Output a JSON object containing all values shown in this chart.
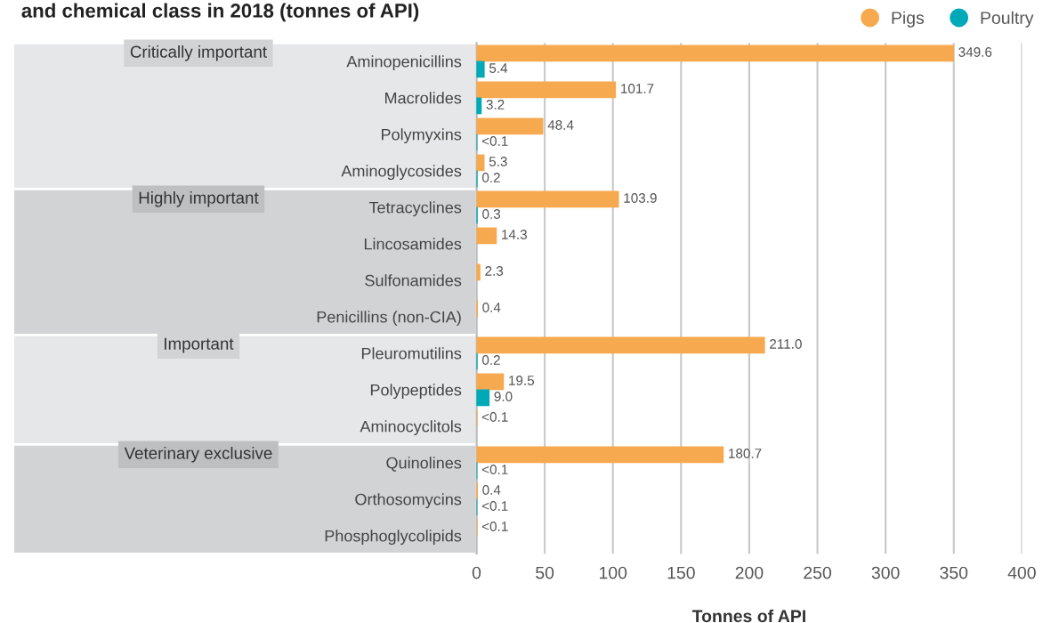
{
  "chart_data": {
    "type": "bar",
    "orientation": "horizontal",
    "title": "and chemical class in 2018 (tonnes of API)",
    "xlabel": "Tonnes of API",
    "categories": [
      "Aminopenicillins",
      "Macrolides",
      "Polymyxins",
      "Aminoglycosides",
      "Tetracyclines",
      "Lincosamides",
      "Sulfonamides",
      "Penicillins (non-CIA)",
      "Pleuromutilins",
      "Polypeptides",
      "Aminocyclitols",
      "Quinolines",
      "Orthosomycins",
      "Phosphoglycolipids"
    ],
    "series": [
      {
        "name": "Pigs",
        "color": "#f7a94f",
        "values": [
          349.6,
          101.7,
          48.4,
          5.3,
          103.9,
          14.3,
          2.3,
          0.4,
          211.0,
          19.5,
          0.05,
          180.7,
          0.4,
          0.05
        ],
        "value_labels": [
          "349.6",
          "101.7",
          "48.4",
          "5.3",
          "103.9",
          "14.3",
          "2.3",
          "0.4",
          "211.0",
          "19.5",
          "<0.1",
          "180.7",
          "0.4",
          "<0.1"
        ]
      },
      {
        "name": "Poultry",
        "color": "#00a9b7",
        "values": [
          5.4,
          3.2,
          0.05,
          0.2,
          0.3,
          null,
          null,
          null,
          0.2,
          9.0,
          null,
          0.05,
          0.05,
          null
        ],
        "value_labels": [
          "5.4",
          "3.2",
          "<0.1",
          "0.2",
          "0.3",
          null,
          null,
          null,
          "0.2",
          "9.0",
          null,
          "<0.1",
          "<0.1",
          null
        ]
      }
    ],
    "xlim": [
      0,
      400
    ],
    "xticks": [
      0,
      50,
      100,
      150,
      200,
      250,
      300,
      350,
      400
    ],
    "annotations": [
      "Critically important",
      "Highly important",
      "Important",
      "Veterinary exclusive"
    ],
    "grid": "x",
    "legend": "top right"
  }
}
